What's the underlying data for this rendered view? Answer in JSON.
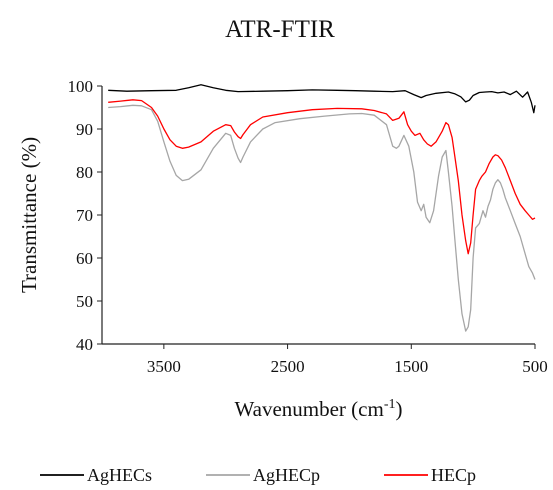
{
  "chart_data": {
    "type": "line",
    "title": "ATR-FTIR",
    "xlabel_main": "Wavenumber (cm",
    "xlabel_sup": "-1",
    "xlabel_close": ")",
    "ylabel": "Transmittance (%)",
    "xlim": [
      4000,
      500
    ],
    "x_reversed": true,
    "ylim": [
      40,
      100
    ],
    "x_ticks": [
      3500,
      2500,
      1500,
      500
    ],
    "x_tick_labels": [
      "3500",
      "2500",
      "1500",
      "500"
    ],
    "y_ticks": [
      40,
      50,
      60,
      70,
      80,
      90,
      100
    ],
    "y_tick_labels": [
      "40",
      "50",
      "60",
      "70",
      "80",
      "90",
      "100"
    ],
    "grid": false,
    "legend_position": "bottom",
    "series": [
      {
        "name": "AgHECs",
        "color": "#000000",
        "points": [
          [
            3950,
            99.0
          ],
          [
            3800,
            98.8
          ],
          [
            3600,
            98.9
          ],
          [
            3400,
            99.0
          ],
          [
            3300,
            99.6
          ],
          [
            3200,
            100.3
          ],
          [
            3100,
            99.6
          ],
          [
            3000,
            99.0
          ],
          [
            2900,
            98.7
          ],
          [
            2700,
            98.8
          ],
          [
            2500,
            98.9
          ],
          [
            2300,
            99.1
          ],
          [
            2100,
            99.0
          ],
          [
            1950,
            98.9
          ],
          [
            1800,
            98.8
          ],
          [
            1650,
            98.7
          ],
          [
            1550,
            98.9
          ],
          [
            1480,
            98.0
          ],
          [
            1420,
            97.3
          ],
          [
            1380,
            97.8
          ],
          [
            1300,
            98.3
          ],
          [
            1200,
            98.6
          ],
          [
            1150,
            98.2
          ],
          [
            1100,
            97.5
          ],
          [
            1060,
            96.3
          ],
          [
            1030,
            96.7
          ],
          [
            1000,
            97.8
          ],
          [
            950,
            98.5
          ],
          [
            900,
            98.6
          ],
          [
            850,
            98.7
          ],
          [
            800,
            98.4
          ],
          [
            750,
            98.6
          ],
          [
            700,
            98.0
          ],
          [
            650,
            98.8
          ],
          [
            600,
            97.4
          ],
          [
            560,
            98.6
          ],
          [
            530,
            96.2
          ],
          [
            510,
            93.8
          ],
          [
            500,
            95.5
          ]
        ]
      },
      {
        "name": "AgHECp",
        "color": "#a6a6a6",
        "points": [
          [
            3950,
            95.0
          ],
          [
            3850,
            95.2
          ],
          [
            3750,
            95.5
          ],
          [
            3680,
            95.4
          ],
          [
            3600,
            94.5
          ],
          [
            3550,
            91.8
          ],
          [
            3500,
            87.0
          ],
          [
            3450,
            82.5
          ],
          [
            3400,
            79.2
          ],
          [
            3350,
            78.0
          ],
          [
            3300,
            78.3
          ],
          [
            3200,
            80.5
          ],
          [
            3100,
            85.5
          ],
          [
            3000,
            89.0
          ],
          [
            2960,
            88.5
          ],
          [
            2930,
            85.5
          ],
          [
            2900,
            83.2
          ],
          [
            2880,
            82.2
          ],
          [
            2860,
            83.5
          ],
          [
            2800,
            87.0
          ],
          [
            2700,
            90.0
          ],
          [
            2600,
            91.5
          ],
          [
            2400,
            92.4
          ],
          [
            2200,
            93.0
          ],
          [
            2000,
            93.5
          ],
          [
            1900,
            93.6
          ],
          [
            1800,
            93.2
          ],
          [
            1700,
            91.0
          ],
          [
            1650,
            86.0
          ],
          [
            1620,
            85.5
          ],
          [
            1600,
            86.0
          ],
          [
            1560,
            88.5
          ],
          [
            1520,
            86.0
          ],
          [
            1480,
            80.0
          ],
          [
            1450,
            73.0
          ],
          [
            1420,
            71.0
          ],
          [
            1400,
            72.5
          ],
          [
            1380,
            69.5
          ],
          [
            1350,
            68.2
          ],
          [
            1320,
            71.0
          ],
          [
            1280,
            79.0
          ],
          [
            1250,
            83.5
          ],
          [
            1220,
            85.0
          ],
          [
            1200,
            80.0
          ],
          [
            1170,
            72.0
          ],
          [
            1150,
            65.0
          ],
          [
            1120,
            55.0
          ],
          [
            1090,
            47.0
          ],
          [
            1060,
            43.0
          ],
          [
            1040,
            44.0
          ],
          [
            1020,
            48.0
          ],
          [
            1000,
            60.0
          ],
          [
            980,
            67.0
          ],
          [
            950,
            68.0
          ],
          [
            920,
            71.0
          ],
          [
            900,
            69.5
          ],
          [
            880,
            72.0
          ],
          [
            860,
            73.5
          ],
          [
            840,
            76.0
          ],
          [
            820,
            77.5
          ],
          [
            800,
            78.2
          ],
          [
            780,
            77.5
          ],
          [
            760,
            76.0
          ],
          [
            740,
            74.0
          ],
          [
            700,
            71.0
          ],
          [
            660,
            68.0
          ],
          [
            620,
            65.0
          ],
          [
            580,
            61.0
          ],
          [
            550,
            58.0
          ],
          [
            520,
            56.5
          ],
          [
            500,
            55.0
          ]
        ]
      },
      {
        "name": "HECp",
        "color": "#ff0000",
        "points": [
          [
            3950,
            96.2
          ],
          [
            3850,
            96.5
          ],
          [
            3750,
            96.8
          ],
          [
            3680,
            96.6
          ],
          [
            3600,
            95.0
          ],
          [
            3550,
            93.0
          ],
          [
            3500,
            90.0
          ],
          [
            3450,
            87.5
          ],
          [
            3400,
            86.0
          ],
          [
            3350,
            85.5
          ],
          [
            3300,
            85.8
          ],
          [
            3200,
            87.0
          ],
          [
            3100,
            89.5
          ],
          [
            3000,
            91.0
          ],
          [
            2960,
            90.8
          ],
          [
            2930,
            89.3
          ],
          [
            2900,
            88.2
          ],
          [
            2880,
            87.8
          ],
          [
            2860,
            88.7
          ],
          [
            2800,
            91.0
          ],
          [
            2700,
            92.8
          ],
          [
            2500,
            93.8
          ],
          [
            2300,
            94.5
          ],
          [
            2100,
            94.8
          ],
          [
            1900,
            94.7
          ],
          [
            1800,
            94.3
          ],
          [
            1700,
            93.5
          ],
          [
            1650,
            92.0
          ],
          [
            1600,
            92.5
          ],
          [
            1560,
            94.0
          ],
          [
            1530,
            91.0
          ],
          [
            1500,
            89.5
          ],
          [
            1470,
            88.5
          ],
          [
            1430,
            89.0
          ],
          [
            1400,
            87.5
          ],
          [
            1370,
            86.5
          ],
          [
            1340,
            86.0
          ],
          [
            1300,
            87.0
          ],
          [
            1250,
            89.5
          ],
          [
            1220,
            91.5
          ],
          [
            1200,
            91.0
          ],
          [
            1170,
            88.0
          ],
          [
            1150,
            84.0
          ],
          [
            1120,
            78.0
          ],
          [
            1090,
            70.0
          ],
          [
            1060,
            64.0
          ],
          [
            1040,
            61.0
          ],
          [
            1020,
            63.5
          ],
          [
            1000,
            70.0
          ],
          [
            980,
            76.0
          ],
          [
            950,
            78.0
          ],
          [
            930,
            79.0
          ],
          [
            900,
            80.0
          ],
          [
            870,
            82.0
          ],
          [
            840,
            83.5
          ],
          [
            820,
            84.0
          ],
          [
            800,
            83.8
          ],
          [
            770,
            82.8
          ],
          [
            740,
            81.0
          ],
          [
            700,
            78.0
          ],
          [
            660,
            75.0
          ],
          [
            620,
            72.5
          ],
          [
            580,
            71.0
          ],
          [
            550,
            70.0
          ],
          [
            520,
            69.0
          ],
          [
            500,
            69.3
          ]
        ]
      }
    ]
  }
}
